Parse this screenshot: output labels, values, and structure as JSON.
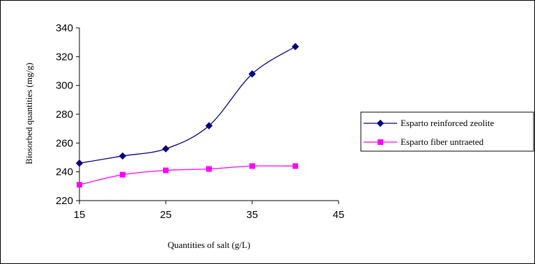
{
  "chart_data": {
    "type": "line",
    "xlabel": "Quantities of salt (g/L)",
    "ylabel": "Biosorbed quantities (mg/g)",
    "xlim": [
      15,
      45
    ],
    "ylim": [
      220,
      340
    ],
    "xticks": [
      15,
      25,
      35,
      45
    ],
    "yticks": [
      220,
      240,
      260,
      280,
      300,
      320,
      340
    ],
    "grid": false,
    "legend_position": "right",
    "x": [
      15,
      20,
      25,
      30,
      35,
      40
    ],
    "series": [
      {
        "name": "Esparto reinforced zeolite",
        "values": [
          246,
          251,
          256,
          272,
          308,
          327
        ],
        "color": "#00007f",
        "marker": "diamond"
      },
      {
        "name": "Esparto fiber untraeted",
        "values": [
          231,
          238,
          241,
          242,
          244,
          244
        ],
        "color": "#ff00ff",
        "marker": "square"
      }
    ]
  }
}
